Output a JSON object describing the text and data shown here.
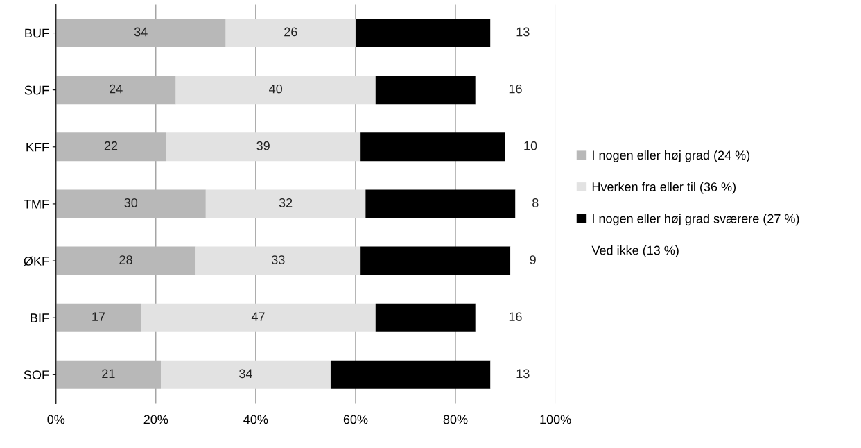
{
  "chart_data": {
    "type": "bar",
    "orientation": "horizontal",
    "stacked": true,
    "categories": [
      "BUF",
      "SUF",
      "KFF",
      "TMF",
      "ØKF",
      "BIF",
      "SOF"
    ],
    "series": [
      {
        "name": "I nogen eller høj grad (24 %)",
        "color": "#b8b8b8",
        "values": [
          34,
          24,
          22,
          30,
          28,
          17,
          21
        ],
        "value_labels": [
          "34",
          "24",
          "22",
          "30",
          "28",
          "17",
          "21"
        ]
      },
      {
        "name": "Hverken fra eller til (36 %)",
        "color": "#e2e2e2",
        "values": [
          26,
          40,
          39,
          32,
          33,
          47,
          34
        ],
        "value_labels": [
          "26",
          "40",
          "39",
          "32",
          "33",
          "47",
          "34"
        ]
      },
      {
        "name": "I nogen eller høj grad sværere (27 %)",
        "color": "#000000",
        "values": [
          27,
          20,
          29,
          30,
          30,
          20,
          32
        ]
      },
      {
        "name": "Ved ikke (13 %)",
        "color": "#ffffff",
        "values": [
          13,
          16,
          10,
          8,
          9,
          16,
          13
        ],
        "value_labels": [
          "13",
          "16",
          "10",
          "8",
          "9",
          "16",
          "13"
        ]
      }
    ],
    "xlim": [
      0,
      100
    ],
    "xticks": [
      {
        "value": 0,
        "label": "0%"
      },
      {
        "value": 20,
        "label": "20%"
      },
      {
        "value": 40,
        "label": "40%"
      },
      {
        "value": 60,
        "label": "60%"
      },
      {
        "value": 80,
        "label": "80%"
      },
      {
        "value": 100,
        "label": "100%"
      }
    ],
    "grid": "x",
    "legend": "right"
  }
}
